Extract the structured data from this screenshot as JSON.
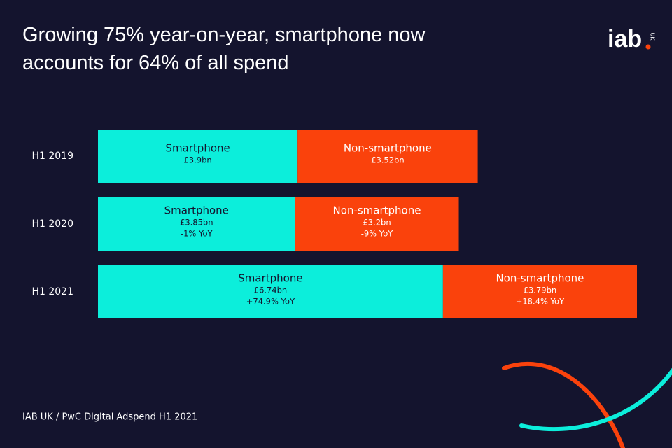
{
  "chart_data": {
    "type": "stacked-bar-horizontal",
    "title": "Growing 75% year-on-year, smartphone now accounts for 64% of all spend",
    "categories": [
      "H1 2019",
      "H1 2020",
      "H1 2021"
    ],
    "series": [
      {
        "name": "Smartphone",
        "color": "#0ceedb",
        "values": [
          3.9,
          3.85,
          6.74
        ],
        "value_labels": [
          "£3.9bn",
          "£3.85bn",
          "£6.74bn"
        ],
        "yoy_labels": [
          null,
          "-1% YoY",
          "+74.9% YoY"
        ]
      },
      {
        "name": "Non-smartphone",
        "color": "#fa420c",
        "values": [
          3.52,
          3.2,
          3.79
        ],
        "value_labels": [
          "£3.52bn",
          "£3.2bn",
          "£3.79bn"
        ],
        "yoy_labels": [
          null,
          "-9% YoY",
          "+18.4% YoY"
        ]
      }
    ],
    "source": "IAB UK / PwC Digital Adspend H1 2021",
    "logo": {
      "text": "iab",
      "region": "UK"
    }
  }
}
